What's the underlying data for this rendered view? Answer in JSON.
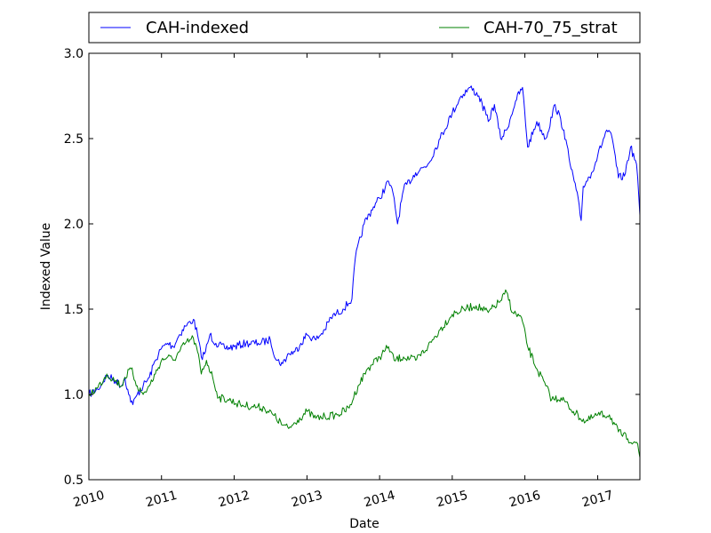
{
  "chart_data": {
    "type": "line",
    "xlabel": "Date",
    "ylabel": "Indexed Value",
    "xlim": [
      "2010-01-01",
      "2017-08-01"
    ],
    "ylim": [
      0.5,
      3.0
    ],
    "xticks": [
      "2010",
      "2011",
      "2012",
      "2013",
      "2014",
      "2015",
      "2016",
      "2017"
    ],
    "yticks": [
      "0.5",
      "1.0",
      "1.5",
      "2.0",
      "2.5",
      "3.0"
    ],
    "legend": {
      "placement": "top",
      "columns": 2
    },
    "grid": false,
    "series": [
      {
        "name": "CAH-indexed",
        "color": "#0000ff",
        "points": [
          [
            "2010-01-01",
            1.0
          ],
          [
            "2010-02-15",
            1.03
          ],
          [
            "2010-04-01",
            1.11
          ],
          [
            "2010-05-15",
            1.08
          ],
          [
            "2010-06-15",
            1.05
          ],
          [
            "2010-07-01",
            1.1
          ],
          [
            "2010-07-20",
            1.0
          ],
          [
            "2010-08-10",
            0.94
          ],
          [
            "2010-09-01",
            1.0
          ],
          [
            "2010-10-01",
            1.05
          ],
          [
            "2010-11-01",
            1.1
          ],
          [
            "2010-12-01",
            1.2
          ],
          [
            "2011-01-01",
            1.27
          ],
          [
            "2011-02-01",
            1.3
          ],
          [
            "2011-03-01",
            1.28
          ],
          [
            "2011-04-01",
            1.35
          ],
          [
            "2011-05-01",
            1.4
          ],
          [
            "2011-06-10",
            1.44
          ],
          [
            "2011-07-01",
            1.35
          ],
          [
            "2011-07-20",
            1.22
          ],
          [
            "2011-08-10",
            1.25
          ],
          [
            "2011-09-01",
            1.35
          ],
          [
            "2011-10-01",
            1.3
          ],
          [
            "2011-11-15",
            1.27
          ],
          [
            "2012-01-01",
            1.28
          ],
          [
            "2012-03-01",
            1.3
          ],
          [
            "2012-05-01",
            1.3
          ],
          [
            "2012-07-01",
            1.32
          ],
          [
            "2012-08-01",
            1.2
          ],
          [
            "2012-09-01",
            1.18
          ],
          [
            "2012-10-01",
            1.24
          ],
          [
            "2012-11-01",
            1.25
          ],
          [
            "2012-12-01",
            1.3
          ],
          [
            "2013-01-01",
            1.35
          ],
          [
            "2013-02-15",
            1.32
          ],
          [
            "2013-04-01",
            1.38
          ],
          [
            "2013-05-01",
            1.45
          ],
          [
            "2013-07-01",
            1.5
          ],
          [
            "2013-08-15",
            1.56
          ],
          [
            "2013-09-01",
            1.8
          ],
          [
            "2013-10-15",
            2.0
          ],
          [
            "2013-12-01",
            2.1
          ],
          [
            "2014-01-01",
            2.15
          ],
          [
            "2014-02-15",
            2.25
          ],
          [
            "2014-03-15",
            2.15
          ],
          [
            "2014-04-01",
            2.0
          ],
          [
            "2014-05-01",
            2.2
          ],
          [
            "2014-07-01",
            2.3
          ],
          [
            "2014-09-01",
            2.35
          ],
          [
            "2014-11-01",
            2.5
          ],
          [
            "2015-01-01",
            2.65
          ],
          [
            "2015-02-15",
            2.75
          ],
          [
            "2015-04-01",
            2.8
          ],
          [
            "2015-05-15",
            2.75
          ],
          [
            "2015-07-01",
            2.6
          ],
          [
            "2015-08-01",
            2.7
          ],
          [
            "2015-09-01",
            2.5
          ],
          [
            "2015-10-01",
            2.55
          ],
          [
            "2015-11-15",
            2.72
          ],
          [
            "2015-12-20",
            2.8
          ],
          [
            "2016-01-15",
            2.45
          ],
          [
            "2016-03-01",
            2.6
          ],
          [
            "2016-04-15",
            2.5
          ],
          [
            "2016-06-01",
            2.7
          ],
          [
            "2016-07-15",
            2.55
          ],
          [
            "2016-08-15",
            2.35
          ],
          [
            "2016-09-15",
            2.2
          ],
          [
            "2016-10-10",
            2.02
          ],
          [
            "2016-10-20",
            2.22
          ],
          [
            "2016-12-01",
            2.3
          ],
          [
            "2017-01-01",
            2.4
          ],
          [
            "2017-02-15",
            2.55
          ],
          [
            "2017-03-15",
            2.5
          ],
          [
            "2017-04-15",
            2.27
          ],
          [
            "2017-05-15",
            2.28
          ],
          [
            "2017-06-15",
            2.45
          ],
          [
            "2017-07-15",
            2.35
          ],
          [
            "2017-08-01",
            2.05
          ]
        ]
      },
      {
        "name": "CAH-70_75_strat",
        "color": "#008000",
        "points": [
          [
            "2010-01-01",
            1.0
          ],
          [
            "2010-02-15",
            1.04
          ],
          [
            "2010-04-01",
            1.12
          ],
          [
            "2010-05-15",
            1.08
          ],
          [
            "2010-06-15",
            1.05
          ],
          [
            "2010-07-01",
            1.1
          ],
          [
            "2010-08-01",
            1.15
          ],
          [
            "2010-09-01",
            1.05
          ],
          [
            "2010-10-01",
            1.0
          ],
          [
            "2010-11-01",
            1.05
          ],
          [
            "2010-12-01",
            1.12
          ],
          [
            "2011-01-01",
            1.2
          ],
          [
            "2011-02-01",
            1.22
          ],
          [
            "2011-03-01",
            1.2
          ],
          [
            "2011-04-01",
            1.25
          ],
          [
            "2011-05-01",
            1.3
          ],
          [
            "2011-06-10",
            1.33
          ],
          [
            "2011-07-01",
            1.25
          ],
          [
            "2011-07-20",
            1.12
          ],
          [
            "2011-08-15",
            1.2
          ],
          [
            "2011-09-15",
            1.1
          ],
          [
            "2011-10-15",
            0.98
          ],
          [
            "2011-12-01",
            0.97
          ],
          [
            "2012-02-01",
            0.94
          ],
          [
            "2012-04-01",
            0.93
          ],
          [
            "2012-06-01",
            0.92
          ],
          [
            "2012-07-15",
            0.88
          ],
          [
            "2012-09-01",
            0.82
          ],
          [
            "2012-10-01",
            0.8
          ],
          [
            "2012-11-15",
            0.85
          ],
          [
            "2013-01-01",
            0.9
          ],
          [
            "2013-02-15",
            0.86
          ],
          [
            "2013-04-01",
            0.87
          ],
          [
            "2013-06-01",
            0.88
          ],
          [
            "2013-08-01",
            0.92
          ],
          [
            "2013-09-15",
            1.05
          ],
          [
            "2013-11-01",
            1.15
          ],
          [
            "2014-01-01",
            1.22
          ],
          [
            "2014-02-15",
            1.28
          ],
          [
            "2014-03-15",
            1.2
          ],
          [
            "2014-05-01",
            1.22
          ],
          [
            "2014-07-01",
            1.2
          ],
          [
            "2014-09-01",
            1.28
          ],
          [
            "2014-11-01",
            1.38
          ],
          [
            "2015-01-01",
            1.47
          ],
          [
            "2015-03-01",
            1.5
          ],
          [
            "2015-05-01",
            1.52
          ],
          [
            "2015-07-01",
            1.48
          ],
          [
            "2015-09-01",
            1.55
          ],
          [
            "2015-10-01",
            1.6
          ],
          [
            "2015-11-01",
            1.48
          ],
          [
            "2015-12-15",
            1.45
          ],
          [
            "2016-01-15",
            1.28
          ],
          [
            "2016-03-01",
            1.15
          ],
          [
            "2016-04-15",
            1.05
          ],
          [
            "2016-05-15",
            0.97
          ],
          [
            "2016-07-01",
            0.98
          ],
          [
            "2016-09-01",
            0.9
          ],
          [
            "2016-11-01",
            0.84
          ],
          [
            "2017-01-01",
            0.88
          ],
          [
            "2017-03-01",
            0.88
          ],
          [
            "2017-04-15",
            0.78
          ],
          [
            "2017-06-01",
            0.74
          ],
          [
            "2017-07-15",
            0.72
          ],
          [
            "2017-08-01",
            0.63
          ]
        ]
      }
    ]
  }
}
